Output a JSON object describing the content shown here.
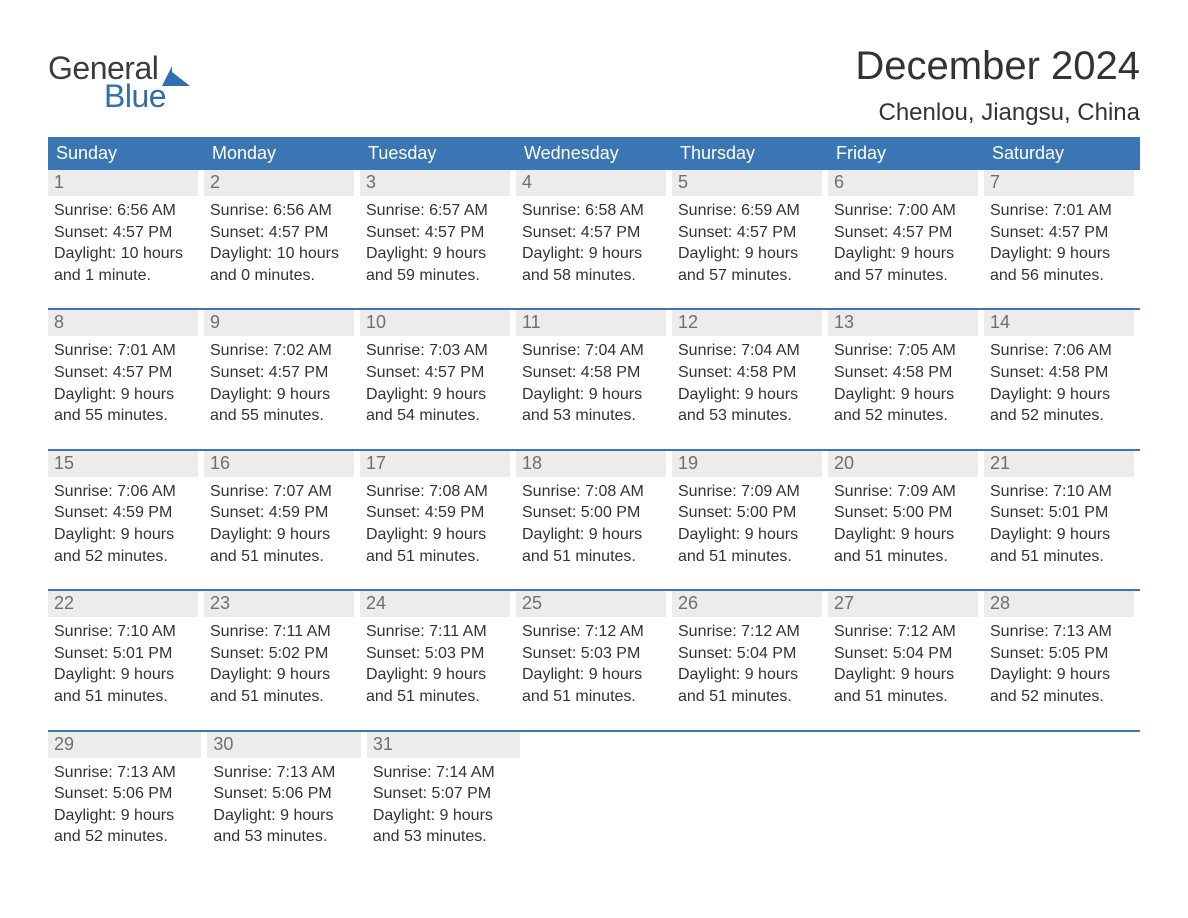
{
  "logo": {
    "text1": "General",
    "text2": "Blue",
    "flag_color": "#2f6fad",
    "text1_color": "#3c3c3c",
    "text2_color": "#2f6fad"
  },
  "title": {
    "month": "December 2024",
    "location": "Chenlou, Jiangsu, China"
  },
  "colors": {
    "header_bg": "#3a76b4",
    "header_text": "#ffffff",
    "row_border": "#3a76b4",
    "daynum_bg": "#ececec",
    "daynum_text": "#6f6f6f",
    "body_text": "#333333",
    "page_bg": "#ffffff"
  },
  "typography": {
    "title_month_fontsize": 40,
    "title_location_fontsize": 24,
    "header_fontsize": 18,
    "daynum_fontsize": 18,
    "body_fontsize": 16,
    "font_family": "Arial"
  },
  "layout": {
    "columns": 7,
    "rows": 5,
    "aspect": "1188x918"
  },
  "headers": [
    "Sunday",
    "Monday",
    "Tuesday",
    "Wednesday",
    "Thursday",
    "Friday",
    "Saturday"
  ],
  "weeks": [
    [
      {
        "n": "1",
        "sunrise": "Sunrise: 6:56 AM",
        "sunset": "Sunset: 4:57 PM",
        "d1": "Daylight: 10 hours",
        "d2": "and 1 minute."
      },
      {
        "n": "2",
        "sunrise": "Sunrise: 6:56 AM",
        "sunset": "Sunset: 4:57 PM",
        "d1": "Daylight: 10 hours",
        "d2": "and 0 minutes."
      },
      {
        "n": "3",
        "sunrise": "Sunrise: 6:57 AM",
        "sunset": "Sunset: 4:57 PM",
        "d1": "Daylight: 9 hours",
        "d2": "and 59 minutes."
      },
      {
        "n": "4",
        "sunrise": "Sunrise: 6:58 AM",
        "sunset": "Sunset: 4:57 PM",
        "d1": "Daylight: 9 hours",
        "d2": "and 58 minutes."
      },
      {
        "n": "5",
        "sunrise": "Sunrise: 6:59 AM",
        "sunset": "Sunset: 4:57 PM",
        "d1": "Daylight: 9 hours",
        "d2": "and 57 minutes."
      },
      {
        "n": "6",
        "sunrise": "Sunrise: 7:00 AM",
        "sunset": "Sunset: 4:57 PM",
        "d1": "Daylight: 9 hours",
        "d2": "and 57 minutes."
      },
      {
        "n": "7",
        "sunrise": "Sunrise: 7:01 AM",
        "sunset": "Sunset: 4:57 PM",
        "d1": "Daylight: 9 hours",
        "d2": "and 56 minutes."
      }
    ],
    [
      {
        "n": "8",
        "sunrise": "Sunrise: 7:01 AM",
        "sunset": "Sunset: 4:57 PM",
        "d1": "Daylight: 9 hours",
        "d2": "and 55 minutes."
      },
      {
        "n": "9",
        "sunrise": "Sunrise: 7:02 AM",
        "sunset": "Sunset: 4:57 PM",
        "d1": "Daylight: 9 hours",
        "d2": "and 55 minutes."
      },
      {
        "n": "10",
        "sunrise": "Sunrise: 7:03 AM",
        "sunset": "Sunset: 4:57 PM",
        "d1": "Daylight: 9 hours",
        "d2": "and 54 minutes."
      },
      {
        "n": "11",
        "sunrise": "Sunrise: 7:04 AM",
        "sunset": "Sunset: 4:58 PM",
        "d1": "Daylight: 9 hours",
        "d2": "and 53 minutes."
      },
      {
        "n": "12",
        "sunrise": "Sunrise: 7:04 AM",
        "sunset": "Sunset: 4:58 PM",
        "d1": "Daylight: 9 hours",
        "d2": "and 53 minutes."
      },
      {
        "n": "13",
        "sunrise": "Sunrise: 7:05 AM",
        "sunset": "Sunset: 4:58 PM",
        "d1": "Daylight: 9 hours",
        "d2": "and 52 minutes."
      },
      {
        "n": "14",
        "sunrise": "Sunrise: 7:06 AM",
        "sunset": "Sunset: 4:58 PM",
        "d1": "Daylight: 9 hours",
        "d2": "and 52 minutes."
      }
    ],
    [
      {
        "n": "15",
        "sunrise": "Sunrise: 7:06 AM",
        "sunset": "Sunset: 4:59 PM",
        "d1": "Daylight: 9 hours",
        "d2": "and 52 minutes."
      },
      {
        "n": "16",
        "sunrise": "Sunrise: 7:07 AM",
        "sunset": "Sunset: 4:59 PM",
        "d1": "Daylight: 9 hours",
        "d2": "and 51 minutes."
      },
      {
        "n": "17",
        "sunrise": "Sunrise: 7:08 AM",
        "sunset": "Sunset: 4:59 PM",
        "d1": "Daylight: 9 hours",
        "d2": "and 51 minutes."
      },
      {
        "n": "18",
        "sunrise": "Sunrise: 7:08 AM",
        "sunset": "Sunset: 5:00 PM",
        "d1": "Daylight: 9 hours",
        "d2": "and 51 minutes."
      },
      {
        "n": "19",
        "sunrise": "Sunrise: 7:09 AM",
        "sunset": "Sunset: 5:00 PM",
        "d1": "Daylight: 9 hours",
        "d2": "and 51 minutes."
      },
      {
        "n": "20",
        "sunrise": "Sunrise: 7:09 AM",
        "sunset": "Sunset: 5:00 PM",
        "d1": "Daylight: 9 hours",
        "d2": "and 51 minutes."
      },
      {
        "n": "21",
        "sunrise": "Sunrise: 7:10 AM",
        "sunset": "Sunset: 5:01 PM",
        "d1": "Daylight: 9 hours",
        "d2": "and 51 minutes."
      }
    ],
    [
      {
        "n": "22",
        "sunrise": "Sunrise: 7:10 AM",
        "sunset": "Sunset: 5:01 PM",
        "d1": "Daylight: 9 hours",
        "d2": "and 51 minutes."
      },
      {
        "n": "23",
        "sunrise": "Sunrise: 7:11 AM",
        "sunset": "Sunset: 5:02 PM",
        "d1": "Daylight: 9 hours",
        "d2": "and 51 minutes."
      },
      {
        "n": "24",
        "sunrise": "Sunrise: 7:11 AM",
        "sunset": "Sunset: 5:03 PM",
        "d1": "Daylight: 9 hours",
        "d2": "and 51 minutes."
      },
      {
        "n": "25",
        "sunrise": "Sunrise: 7:12 AM",
        "sunset": "Sunset: 5:03 PM",
        "d1": "Daylight: 9 hours",
        "d2": "and 51 minutes."
      },
      {
        "n": "26",
        "sunrise": "Sunrise: 7:12 AM",
        "sunset": "Sunset: 5:04 PM",
        "d1": "Daylight: 9 hours",
        "d2": "and 51 minutes."
      },
      {
        "n": "27",
        "sunrise": "Sunrise: 7:12 AM",
        "sunset": "Sunset: 5:04 PM",
        "d1": "Daylight: 9 hours",
        "d2": "and 51 minutes."
      },
      {
        "n": "28",
        "sunrise": "Sunrise: 7:13 AM",
        "sunset": "Sunset: 5:05 PM",
        "d1": "Daylight: 9 hours",
        "d2": "and 52 minutes."
      }
    ],
    [
      {
        "n": "29",
        "sunrise": "Sunrise: 7:13 AM",
        "sunset": "Sunset: 5:06 PM",
        "d1": "Daylight: 9 hours",
        "d2": "and 52 minutes."
      },
      {
        "n": "30",
        "sunrise": "Sunrise: 7:13 AM",
        "sunset": "Sunset: 5:06 PM",
        "d1": "Daylight: 9 hours",
        "d2": "and 53 minutes."
      },
      {
        "n": "31",
        "sunrise": "Sunrise: 7:14 AM",
        "sunset": "Sunset: 5:07 PM",
        "d1": "Daylight: 9 hours",
        "d2": "and 53 minutes."
      },
      null,
      null,
      null,
      null
    ]
  ]
}
